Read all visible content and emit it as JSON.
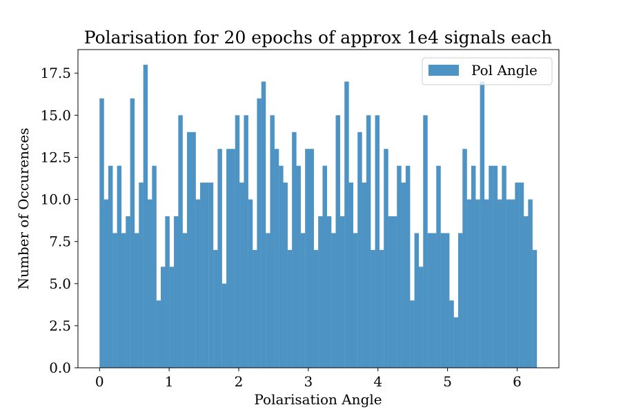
{
  "chart_data": {
    "type": "bar",
    "title": "Polarisation for 20 epochs of approx 1e4 signals each",
    "xlabel": "Polarisation Angle",
    "ylabel": "Number of Occurences",
    "xlim": [
      -0.31,
      6.6
    ],
    "ylim": [
      0,
      18.9
    ],
    "x_ticks": [
      0,
      1,
      2,
      3,
      4,
      5,
      6
    ],
    "x_tick_labels": [
      "0",
      "1",
      "2",
      "3",
      "4",
      "5",
      "6"
    ],
    "y_ticks": [
      0,
      2.5,
      5,
      7.5,
      10,
      12.5,
      15,
      17.5
    ],
    "y_tick_labels": [
      "0.0",
      "2.5",
      "5.0",
      "7.5",
      "10.0",
      "12.5",
      "15.0",
      "17.5"
    ],
    "grid": false,
    "legend_position": "top-right",
    "bins": {
      "start": 0,
      "end": 6.2832,
      "count": 100
    },
    "series": [
      {
        "name": "Pol Angle",
        "color": "#4d93c4",
        "values": [
          16,
          10,
          12,
          8,
          12,
          8,
          9,
          16,
          8,
          11,
          18,
          10,
          12,
          4,
          6,
          9,
          6,
          9,
          15,
          8,
          14,
          14,
          10,
          11,
          11,
          11,
          7,
          13,
          5,
          13,
          13,
          15,
          11,
          15,
          10,
          7,
          16,
          17,
          8,
          15,
          13,
          12,
          11,
          7,
          14,
          12,
          8,
          13,
          13,
          7,
          9,
          12,
          9,
          8,
          15,
          9,
          17,
          11,
          8,
          14,
          11,
          15,
          7,
          15,
          7,
          13,
          9,
          9,
          12,
          11,
          12,
          4,
          8,
          6,
          15,
          8,
          8,
          12,
          8,
          8,
          4,
          3,
          8,
          13,
          10,
          12,
          10,
          17,
          10,
          12,
          12,
          10,
          12,
          10,
          10,
          11,
          11,
          9,
          10,
          7
        ]
      }
    ]
  }
}
